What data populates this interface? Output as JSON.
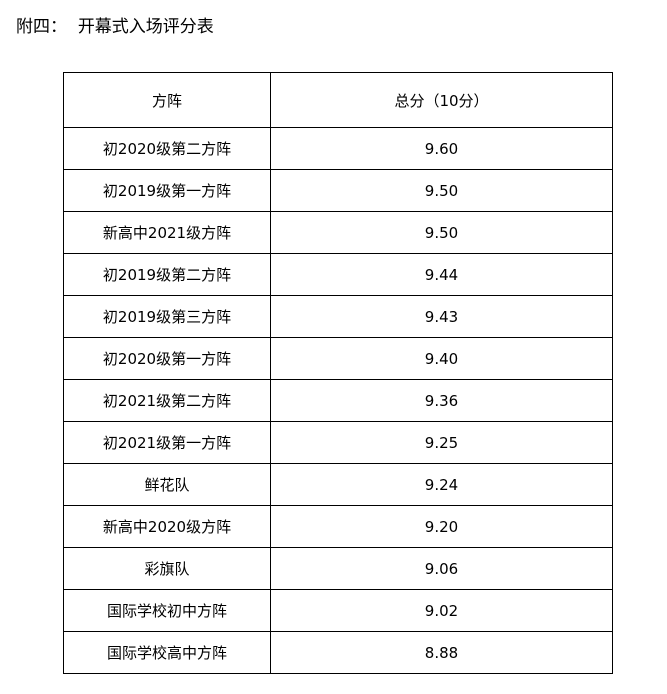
{
  "document": {
    "title_prefix": "附四：",
    "title": "开幕式入场评分表"
  },
  "table": {
    "headers": [
      "方阵",
      "总分（10分）"
    ],
    "rows": [
      {
        "name": "初2020级第二方阵",
        "score": "9.60"
      },
      {
        "name": "初2019级第一方阵",
        "score": "9.50"
      },
      {
        "name": "新高中2021级方阵",
        "score": "9.50"
      },
      {
        "name": "初2019级第二方阵",
        "score": "9.44"
      },
      {
        "name": "初2019级第三方阵",
        "score": "9.43"
      },
      {
        "name": "初2020级第一方阵",
        "score": "9.40"
      },
      {
        "name": "初2021级第二方阵",
        "score": "9.36"
      },
      {
        "name": "初2021级第一方阵",
        "score": "9.25"
      },
      {
        "name": "鲜花队",
        "score": "9.24"
      },
      {
        "name": "新高中2020级方阵",
        "score": "9.20"
      },
      {
        "name": "彩旗队",
        "score": "9.06"
      },
      {
        "name": "国际学校初中方阵",
        "score": "9.02"
      },
      {
        "name": "国际学校高中方阵",
        "score": "8.88"
      }
    ]
  }
}
